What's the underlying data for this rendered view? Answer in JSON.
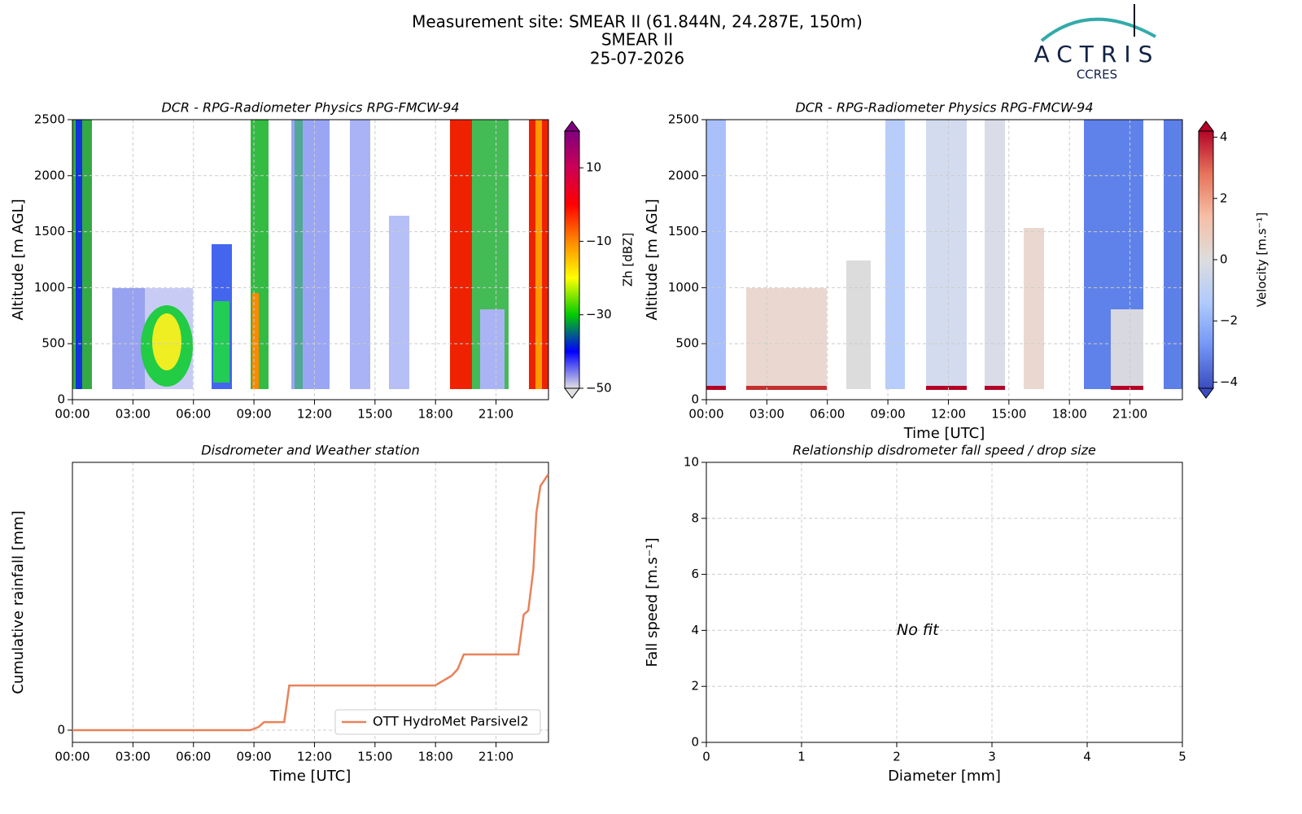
{
  "header": {
    "title": "Measurement site: SMEAR II (61.844N, 24.287E, 150m)",
    "site": "SMEAR II",
    "date": "25-07-2026",
    "logo": "ACTRIS",
    "logo_sub": "CCRES"
  },
  "chart_data": [
    {
      "type": "heatmap",
      "title": "DCR - RPG-Radiometer Physics RPG-FMCW-94",
      "ylabel": "Altitude [m AGL]",
      "xlim": [
        0,
        23.6
      ],
      "xticks": [
        {
          "value": 0,
          "label": "00:00"
        },
        {
          "value": 3,
          "label": "03:00"
        },
        {
          "value": 6,
          "label": "06:00"
        },
        {
          "value": 9,
          "label": "09:00"
        },
        {
          "value": 12,
          "label": "12:00"
        },
        {
          "value": 15,
          "label": "15:00"
        },
        {
          "value": 18,
          "label": "18:00"
        },
        {
          "value": 21,
          "label": "21:00"
        }
      ],
      "ylim": [
        0,
        2500
      ],
      "yticks": [
        0,
        500,
        1000,
        1500,
        2000,
        2500
      ],
      "grid": true,
      "colorbar": {
        "label": "Zh [dBZ]",
        "lim": [
          -50,
          20
        ],
        "ticks": [
          {
            "value": 10,
            "label": "10"
          },
          {
            "value": -10,
            "label": "−10"
          },
          {
            "value": -30,
            "label": "−30"
          },
          {
            "value": -50,
            "label": "−50"
          }
        ],
        "colormap": [
          "#e0e0e0",
          "#0000ff",
          "#00cc00",
          "#ffff00",
          "#ff8800",
          "#ff0000",
          "#cc0055",
          "#800080"
        ]
      }
    },
    {
      "type": "heatmap",
      "title": "DCR - RPG-Radiometer Physics RPG-FMCW-94",
      "xlabel": "Time [UTC]",
      "ylabel": "Altitude [m AGL]",
      "xlim": [
        0,
        23.6
      ],
      "xticks": [
        {
          "value": 0,
          "label": "00:00"
        },
        {
          "value": 3,
          "label": "03:00"
        },
        {
          "value": 6,
          "label": "06:00"
        },
        {
          "value": 9,
          "label": "09:00"
        },
        {
          "value": 12,
          "label": "12:00"
        },
        {
          "value": 15,
          "label": "15:00"
        },
        {
          "value": 18,
          "label": "18:00"
        },
        {
          "value": 21,
          "label": "21:00"
        }
      ],
      "ylim": [
        0,
        2500
      ],
      "yticks": [
        0,
        500,
        1000,
        1500,
        2000,
        2500
      ],
      "grid": true,
      "colorbar": {
        "label": "Velocity [m.s⁻¹]",
        "lim": [
          -4.2,
          4.2
        ],
        "ticks": [
          {
            "value": 4,
            "label": "4"
          },
          {
            "value": 2,
            "label": "2"
          },
          {
            "value": 0,
            "label": "0"
          },
          {
            "value": -2,
            "label": "−2"
          },
          {
            "value": -4,
            "label": "−4"
          }
        ],
        "colormap": [
          "#3b4cc0",
          "#7396f5",
          "#b0cbfc",
          "#dddddd",
          "#f6bfa6",
          "#e7745b",
          "#b40426"
        ]
      }
    },
    {
      "type": "line",
      "title": "Disdrometer and Weather station",
      "xlabel": "Time [UTC]",
      "ylabel": "Cumulative rainfall [mm]",
      "xlim": [
        0,
        23.6
      ],
      "xticks": [
        {
          "value": 0,
          "label": "00:00"
        },
        {
          "value": 3,
          "label": "03:00"
        },
        {
          "value": 6,
          "label": "06:00"
        },
        {
          "value": 9,
          "label": "09:00"
        },
        {
          "value": 12,
          "label": "12:00"
        },
        {
          "value": 15,
          "label": "15:00"
        },
        {
          "value": 18,
          "label": "18:00"
        },
        {
          "value": 21,
          "label": "21:00"
        }
      ],
      "ylim": [
        -0.5,
        10.97
      ],
      "yticks": [
        0
      ],
      "grid": true,
      "legend": "lower right",
      "x": [
        0,
        8.83,
        9.23,
        9.5,
        10.5,
        10.75,
        17.98,
        18.8,
        19.1,
        19.4,
        22.1,
        22.37,
        22.6,
        22.85,
        23.0,
        23.2,
        23.58
      ],
      "series": [
        {
          "name": "OTT HydroMet Parsivel2",
          "color": "#e8825a",
          "values": [
            0,
            0,
            0.13,
            0.33,
            0.33,
            1.83,
            1.83,
            2.23,
            2.5,
            3.1,
            3.1,
            4.73,
            4.9,
            6.57,
            8.9,
            10.0,
            10.47
          ]
        }
      ]
    },
    {
      "type": "empty",
      "title": "Relationship disdrometer fall speed / drop size",
      "xlabel": "Diameter [mm]",
      "ylabel": "Fall speed [m.s⁻¹]",
      "xlim": [
        0,
        5
      ],
      "xticks": [
        0,
        1,
        2,
        3,
        4,
        5
      ],
      "ylim": [
        0,
        10
      ],
      "yticks": [
        0,
        2,
        4,
        6,
        8,
        10
      ],
      "grid": true,
      "annotation": {
        "text": "No fit",
        "x": 2.0,
        "y": 4.0
      }
    }
  ]
}
